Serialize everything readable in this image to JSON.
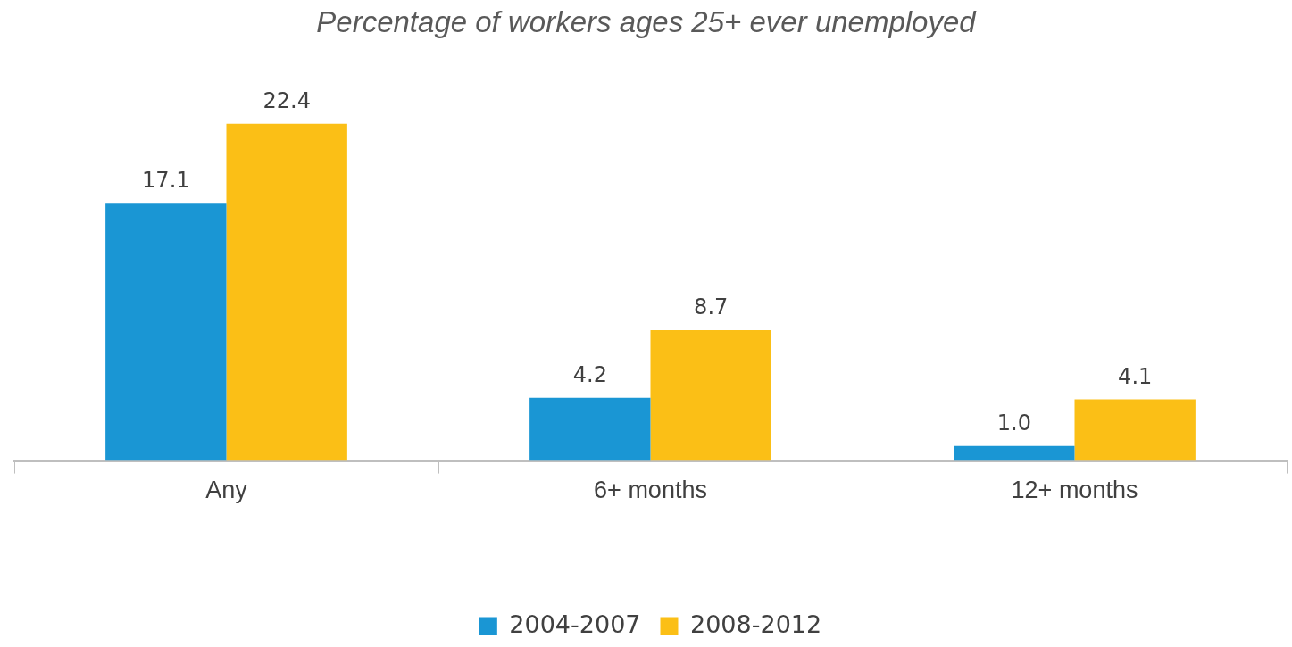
{
  "chart_data": {
    "type": "bar",
    "title": "Percentage of workers ages 25+ ever unemployed",
    "categories": [
      "Any",
      "6+ months",
      "12+ months"
    ],
    "series": [
      {
        "name": "2004-2007",
        "color": "#1a96d4",
        "values": [
          17.1,
          4.2,
          1.0
        ],
        "value_labels": [
          "17.1",
          "4.2",
          "1.0"
        ]
      },
      {
        "name": "2008-2012",
        "color": "#fbbf16",
        "values": [
          22.4,
          8.7,
          4.1
        ],
        "value_labels": [
          "22.4",
          "8.7",
          "4.1"
        ]
      }
    ],
    "tick_labels": "x",
    "grid": false,
    "legend": "bottom"
  }
}
